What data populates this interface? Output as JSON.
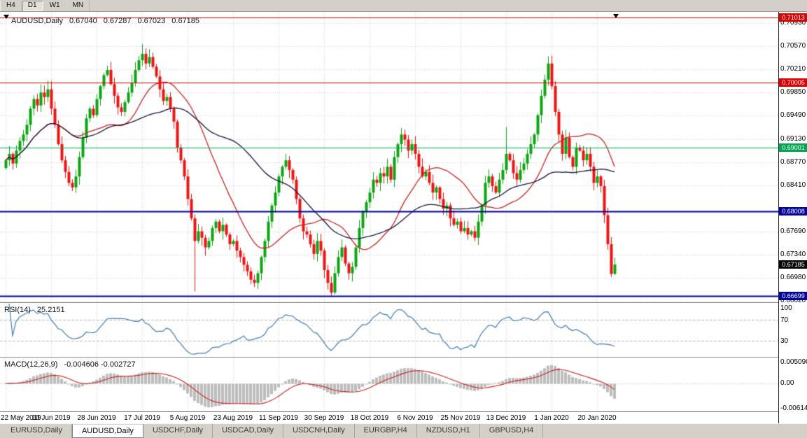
{
  "toolbar": {
    "timeframes": [
      {
        "label": "H4",
        "active": false
      },
      {
        "label": "D1",
        "active": true
      },
      {
        "label": "W1",
        "active": false
      },
      {
        "label": "MN",
        "active": false
      }
    ]
  },
  "chart": {
    "title": "AUDUSD,Daily",
    "ohlc": {
      "open": "0.67040",
      "high": "0.67287",
      "low": "0.67023",
      "close": "0.67185"
    }
  },
  "chart_data": {
    "type": "candlestick",
    "symbol": "AUDUSD",
    "timeframe": "Daily",
    "price_axis": {
      "min": 0.666,
      "max": 0.711,
      "ticks": [
        "0.70930",
        "0.70570",
        "0.70210",
        "0.69850",
        "0.69490",
        "0.69130",
        "0.68770",
        "0.68410",
        "0.67690",
        "0.67340",
        "0.66980",
        "0.66620"
      ]
    },
    "x_labels": [
      "22 May 2019",
      "10 Jun 2019",
      "28 Jun 2019",
      "17 Jul 2019",
      "5 Aug 2019",
      "23 Aug 2019",
      "11 Sep 2019",
      "30 Sep 2019",
      "18 Oct 2019",
      "6 Nov 2019",
      "25 Nov 2019",
      "13 Dec 2019",
      "1 Jan 2020",
      "20 Jan 2020"
    ],
    "x_label_bars": [
      0,
      13,
      26,
      39,
      52,
      65,
      78,
      91,
      104,
      117,
      130,
      143,
      156,
      169
    ],
    "closes_x1e4": [
      6880,
      6890,
      6875,
      6895,
      6910,
      6920,
      6935,
      6960,
      6975,
      6965,
      6985,
      6978,
      6990,
      6960,
      6935,
      6905,
      6880,
      6862,
      6845,
      6838,
      6855,
      6885,
      6915,
      6945,
      6960,
      6950,
      6975,
      6995,
      7012,
      7020,
      6998,
      6980,
      6962,
      6955,
      6970,
      6985,
      7000,
      7020,
      7035,
      7045,
      7030,
      7040,
      7025,
      7010,
      6990,
      6972,
      6978,
      6960,
      6940,
      6900,
      6880,
      6855,
      6820,
      6790,
      6755,
      6770,
      6760,
      6745,
      6755,
      6775,
      6785,
      6770,
      6780,
      6765,
      6750,
      6755,
      6740,
      6730,
      6718,
      6708,
      6695,
      6690,
      6705,
      6730,
      6755,
      6785,
      6810,
      6830,
      6855,
      6870,
      6880,
      6865,
      6850,
      6820,
      6790,
      6770,
      6765,
      6750,
      6735,
      6755,
      6740,
      6710,
      6690,
      6675,
      6705,
      6730,
      6745,
      6720,
      6705,
      6715,
      6745,
      6775,
      6800,
      6815,
      6830,
      6850,
      6845,
      6860,
      6855,
      6870,
      6850,
      6885,
      6905,
      6920,
      6912,
      6895,
      6905,
      6890,
      6870,
      6855,
      6862,
      6845,
      6830,
      6838,
      6820,
      6805,
      6810,
      6790,
      6780,
      6785,
      6770,
      6775,
      6765,
      6770,
      6760,
      6785,
      6810,
      6845,
      6855,
      6840,
      6830,
      6850,
      6865,
      6890,
      6880,
      6860,
      6850,
      6865,
      6875,
      6890,
      6905,
      6920,
      6950,
      6980,
      7005,
      7030,
      6995,
      6955,
      6920,
      6890,
      6915,
      6885,
      6870,
      6900,
      6895,
      6880,
      6890,
      6870,
      6845,
      6855,
      6840,
      6795,
      6750,
      6704,
      6718.5
    ],
    "wick_high_overrides": {
      "12": 7003,
      "39": 7060,
      "113": 6930,
      "143": 6932,
      "155": 7041,
      "174": 6728.7
    },
    "wick_low_overrides": {
      "54": 6677,
      "70": 6688,
      "93": 6670,
      "174": 6702.3
    },
    "hlines": [
      {
        "price": 0.71013,
        "label": "0.71013",
        "color": "#dd0000",
        "width": 1
      },
      {
        "price": 0.70005,
        "label": "0.70005",
        "color": "#dd0000",
        "width": 1
      },
      {
        "price": 0.69001,
        "label": "0.69001",
        "color": "#00a651",
        "width": 1
      },
      {
        "price": 0.68008,
        "label": "0.68008",
        "color": "#0000a0",
        "width": 2
      },
      {
        "price": 0.66699,
        "label": "0.66699",
        "color": "#0000a0",
        "width": 2
      }
    ],
    "current_price": {
      "price": 0.67185,
      "label": "0.67185",
      "color": "#000000"
    },
    "moving_averages": [
      {
        "period": 20,
        "color": "#cc2222"
      },
      {
        "period": 45,
        "color": "#16163f"
      }
    ],
    "style": {
      "up": "#0da512",
      "down": "#ee1414",
      "grid": "#cfcfcf"
    }
  },
  "rsi": {
    "name": "RSI(14)",
    "value": "25.2151",
    "color": "#3f7cb5",
    "axis_labels": [
      "100",
      "70",
      "30"
    ],
    "axis_values": [
      100,
      70,
      30
    ],
    "dash_levels": [
      70,
      30
    ]
  },
  "macd": {
    "name": "MACD(12,26,9)",
    "value": "-0.004606 -0.002727",
    "axis_labels": [
      "0.005090",
      "0.00",
      "-0.006148"
    ],
    "axis_values": [
      0.00509,
      0.0,
      -0.006148
    ],
    "range": [
      -0.0069,
      0.0062
    ],
    "hist_color": "#bdbdbd",
    "signal_color": "#cc2222",
    "fast": 12,
    "slow": 26,
    "signal": 9
  },
  "tabs": [
    {
      "label": "EURUSD,Daily",
      "active": false
    },
    {
      "label": "AUDUSD,Daily",
      "active": true
    },
    {
      "label": "USDCHF,Daily",
      "active": false
    },
    {
      "label": "USDCAD,Daily",
      "active": false
    },
    {
      "label": "USDCNH,Daily",
      "active": false
    },
    {
      "label": "EURGBP,H4",
      "active": false
    },
    {
      "label": "NZDUSD,H1",
      "active": false
    },
    {
      "label": "GBPUSD,H4",
      "active": false
    }
  ]
}
